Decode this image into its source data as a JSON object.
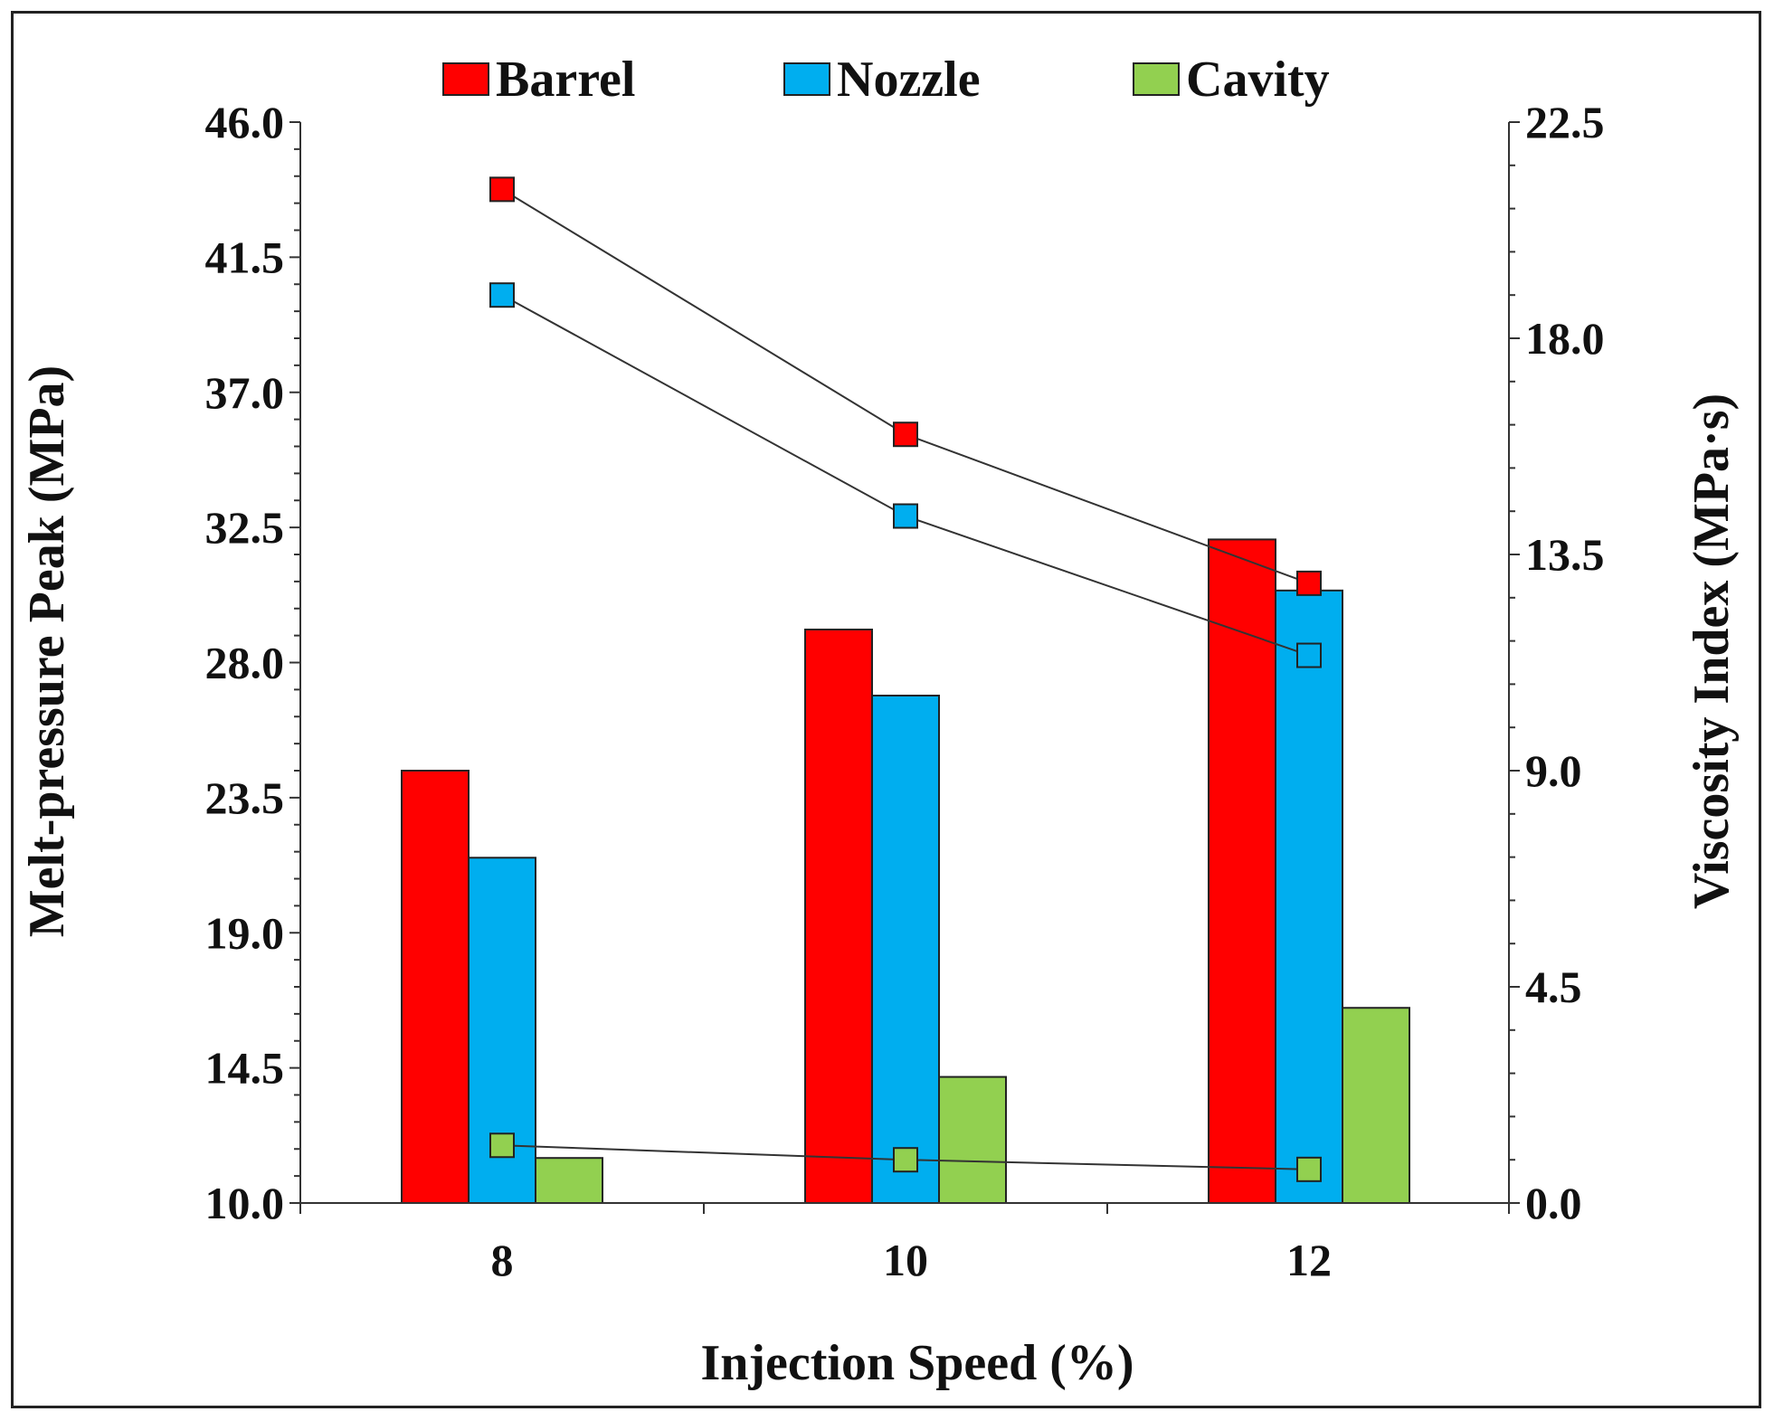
{
  "chart_data": {
    "type": "bar+line",
    "categories": [
      "8",
      "10",
      "12"
    ],
    "xlabel": "Injection Speed (%)",
    "ylabel": "Melt-pressure  Peak (MPa)",
    "ylabel_right": "Viscosity Index (MPa·s)",
    "ylim": [
      10.0,
      46.0
    ],
    "ylim_right": [
      0.0,
      22.5
    ],
    "y_ticks": [
      "10.0",
      "14.5",
      "19.0",
      "23.5",
      "28.0",
      "32.5",
      "37.0",
      "41.5",
      "46.0"
    ],
    "y_ticks_right": [
      "0.0",
      "4.5",
      "9.0",
      "13.5",
      "18.0",
      "22.5"
    ],
    "grid": false,
    "legend_position": "top",
    "series": [
      {
        "name": "Barrel",
        "color": "#ff0000",
        "bar_values": [
          24.4,
          29.1,
          32.1
        ],
        "viscosity_values": [
          21.1,
          16.0,
          12.9
        ]
      },
      {
        "name": "Nozzle",
        "color": "#00aeef",
        "bar_values": [
          21.5,
          26.9,
          30.4
        ],
        "viscosity_values": [
          18.9,
          14.3,
          11.4
        ]
      },
      {
        "name": "Cavity",
        "color": "#92d050",
        "bar_values": [
          11.5,
          14.2,
          16.5
        ],
        "viscosity_values": [
          1.2,
          0.9,
          0.7
        ]
      }
    ]
  }
}
